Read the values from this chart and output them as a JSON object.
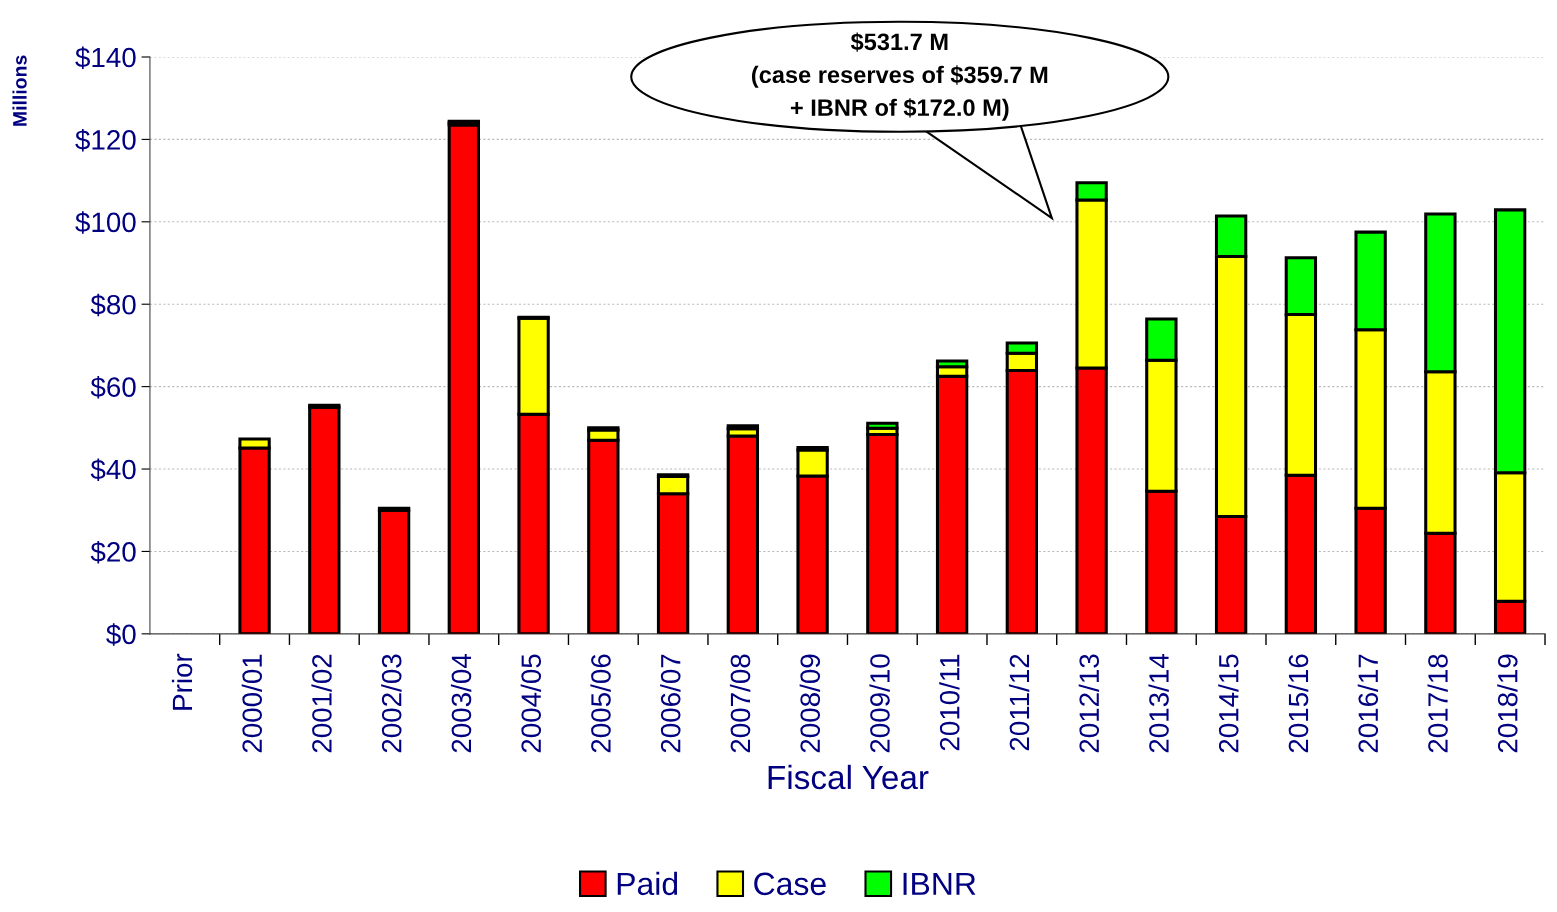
{
  "chart_data": {
    "type": "bar",
    "stacked": true,
    "xlabel": "Fiscal Year",
    "ylabel": "Millions",
    "categories": [
      "Prior",
      "2000/01",
      "2001/02",
      "2002/03",
      "2003/04",
      "2004/05",
      "2005/06",
      "2006/07",
      "2007/08",
      "2008/09",
      "2009/10",
      "2010/11",
      "2011/12",
      "2012/13",
      "2013/14",
      "2014/15",
      "2015/16",
      "2016/17",
      "2017/18",
      "2018/19"
    ],
    "series": [
      {
        "name": "Paid",
        "color": "#ff0000",
        "values": [
          null,
          45.1,
          55.0,
          30.0,
          123.5,
          53.3,
          47.0,
          34.0,
          48.0,
          38.3,
          48.4,
          62.5,
          63.9,
          64.5,
          34.6,
          28.5,
          38.5,
          30.5,
          24.4,
          7.9
        ]
      },
      {
        "name": "Case",
        "color": "#ffff00",
        "values": [
          null,
          2.2,
          0.5,
          0.5,
          0.6,
          23.3,
          2.5,
          4.2,
          1.8,
          6.3,
          1.5,
          2.3,
          4.2,
          40.8,
          31.8,
          63.1,
          39.0,
          43.3,
          39.2,
          31.2
        ]
      },
      {
        "name": "IBNR",
        "color": "#00ff00",
        "values": [
          null,
          null,
          null,
          null,
          0.3,
          0.2,
          0.5,
          0.4,
          0.7,
          0.6,
          1.2,
          1.4,
          2.5,
          4.2,
          10.0,
          9.8,
          13.8,
          23.7,
          38.3,
          63.8
        ]
      }
    ],
    "ylim": [
      0,
      140
    ],
    "yticks": [
      {
        "value": 0,
        "label": "$0"
      },
      {
        "value": 20,
        "label": "$20"
      },
      {
        "value": 40,
        "label": "$40"
      },
      {
        "value": 60,
        "label": "$60"
      },
      {
        "value": 80,
        "label": "$80"
      },
      {
        "value": 100,
        "label": "$100"
      },
      {
        "value": 120,
        "label": "$120"
      },
      {
        "value": 140,
        "label": "$140"
      }
    ],
    "grid": "y",
    "legend": "bottom",
    "annotations": [
      "$531.7 M\n(case reserves of $359.7 M\n+ IBNR of $172.0 M)"
    ]
  }
}
